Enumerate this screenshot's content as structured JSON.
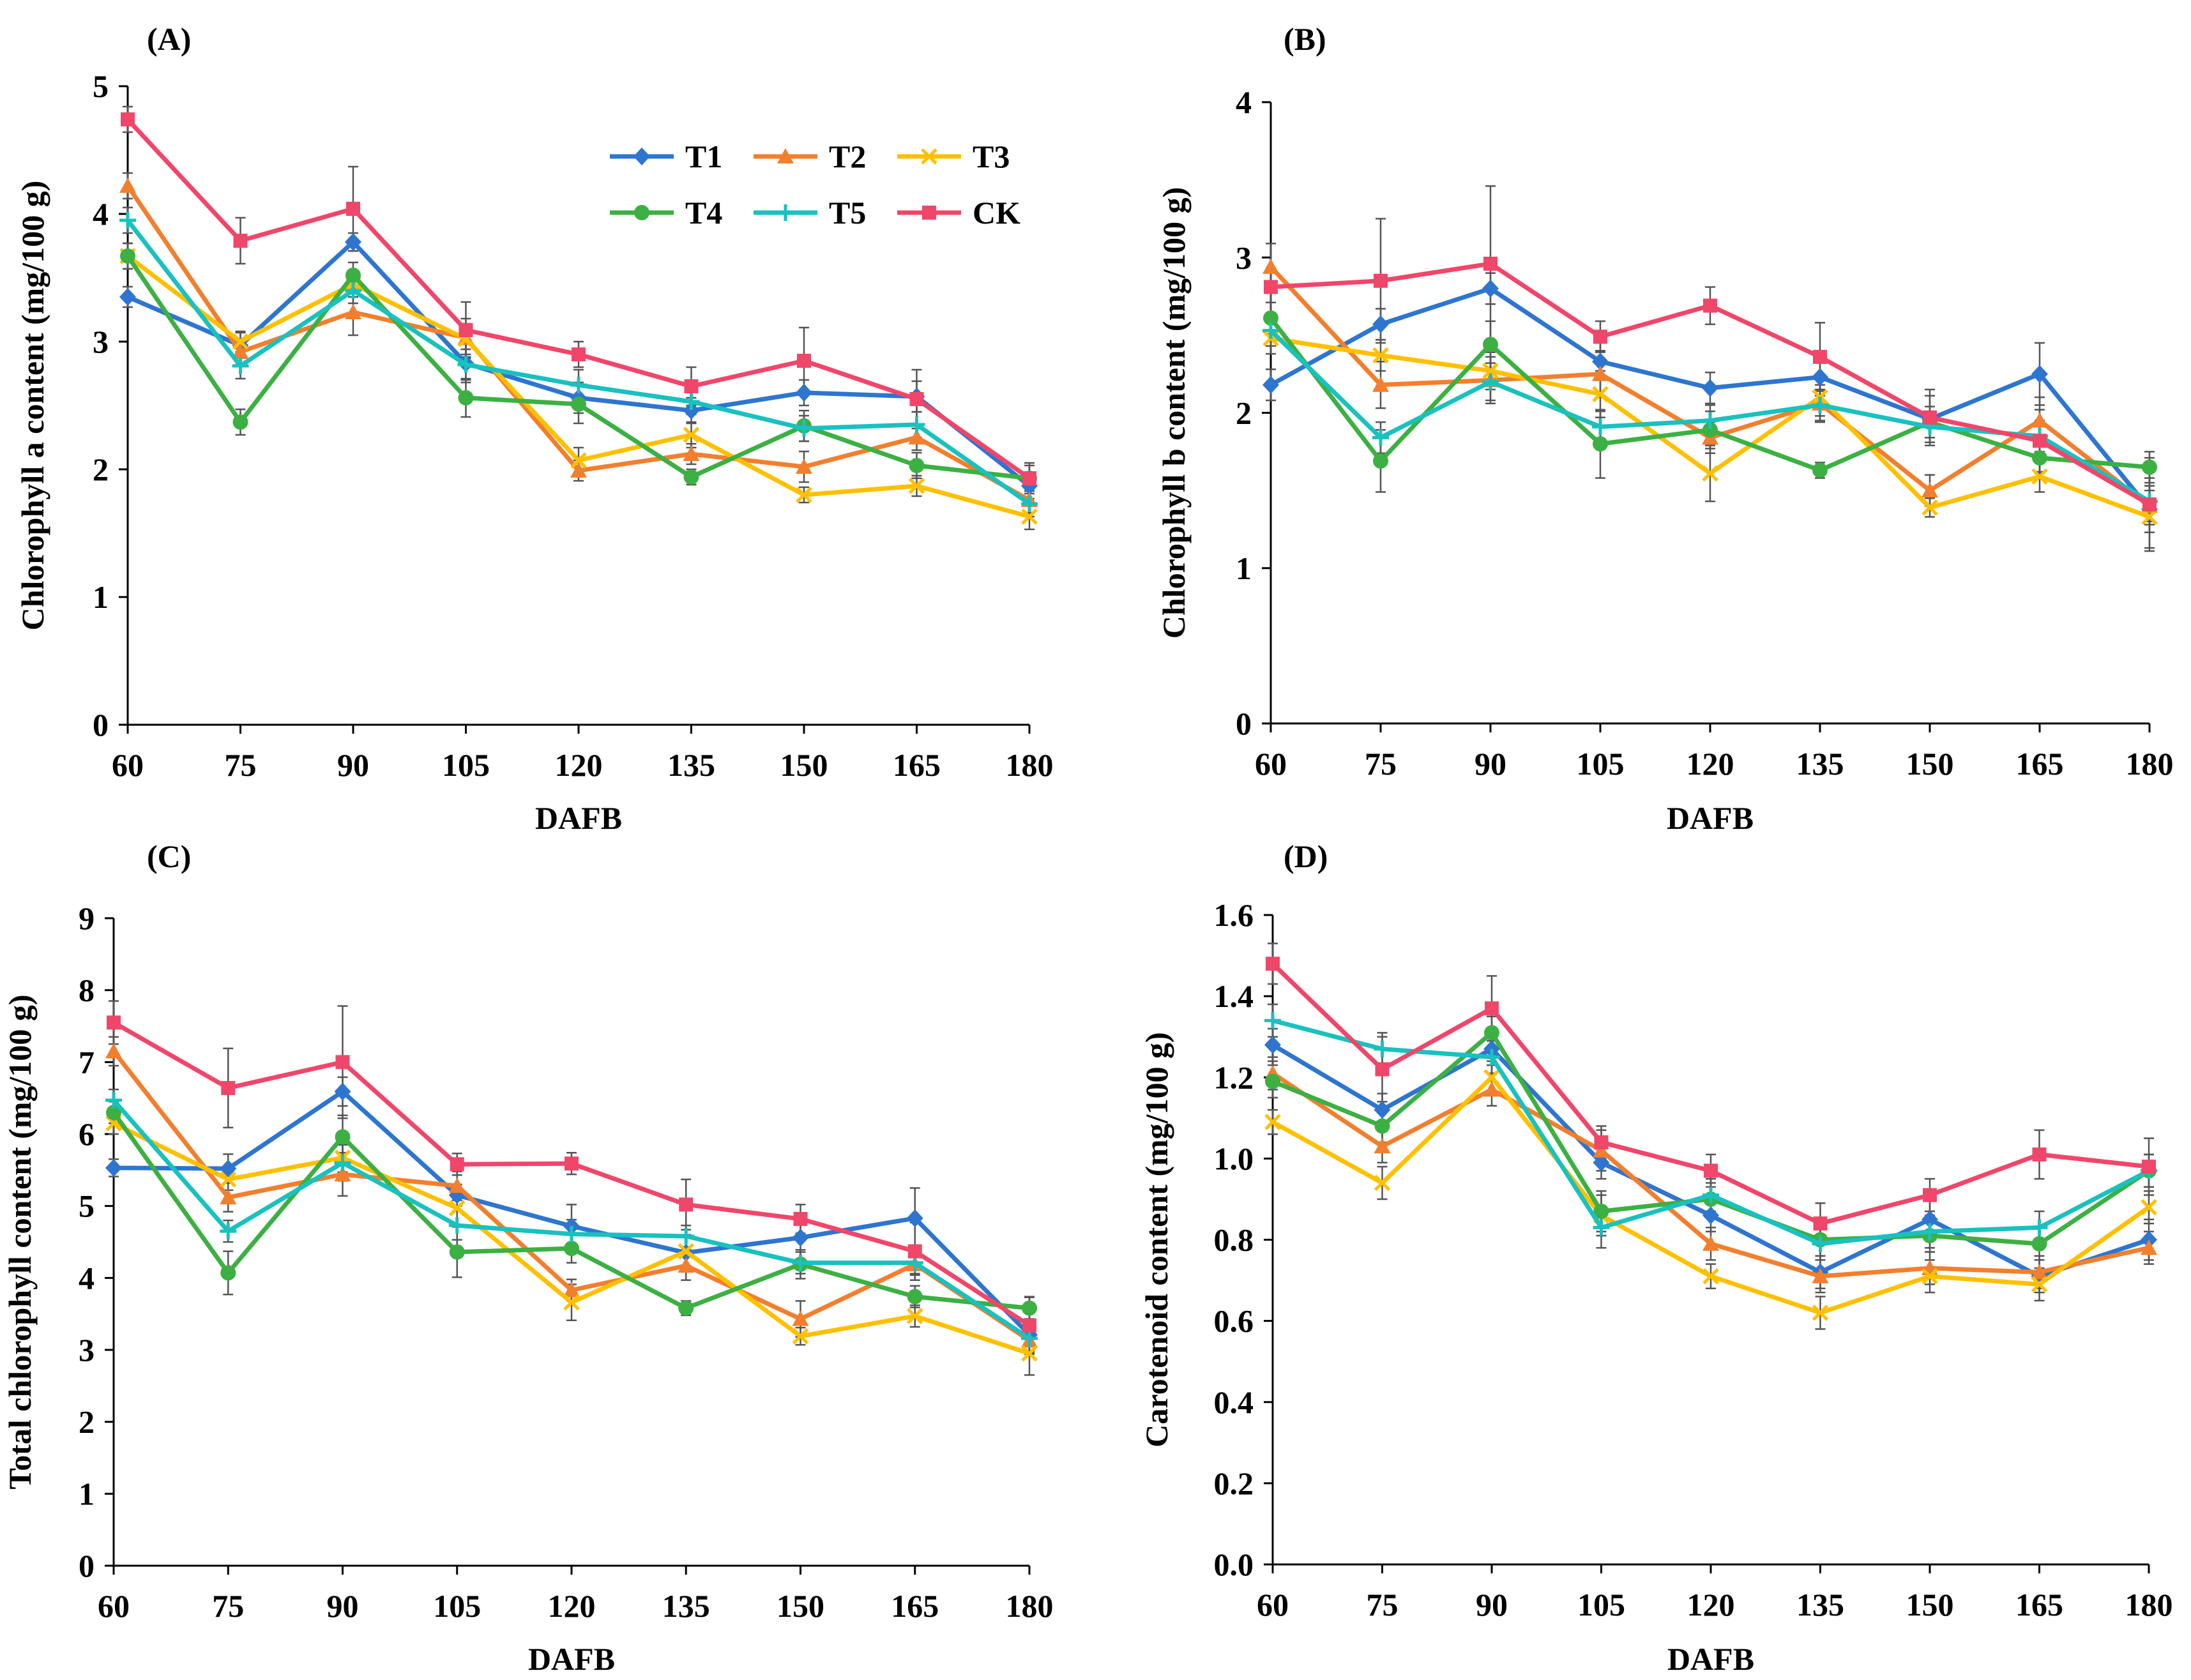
{
  "x_categories": [
    "60",
    "75",
    "90",
    "105",
    "120",
    "135",
    "150",
    "165",
    "180"
  ],
  "series_styles": [
    {
      "name": "T1",
      "color": "#2E75D0",
      "marker": "diamond"
    },
    {
      "name": "T2",
      "color": "#F27F2E",
      "marker": "triangle"
    },
    {
      "name": "T3",
      "color": "#FFC000",
      "marker": "x"
    },
    {
      "name": "T4",
      "color": "#3CB043",
      "marker": "circle"
    },
    {
      "name": "T5",
      "color": "#19C1BF",
      "marker": "plus"
    },
    {
      "name": "CK",
      "color": "#F0466A",
      "marker": "square"
    }
  ],
  "chart_data": [
    {
      "panel": "(A)",
      "type": "line",
      "xlabel": "DAFB",
      "ylabel": "Chlorophyll a content (mg/100 g)",
      "ylim": [
        0,
        5
      ],
      "yticks": [
        "0",
        "1",
        "2",
        "3",
        "4",
        "5"
      ],
      "categories": [
        "60",
        "75",
        "90",
        "105",
        "120",
        "135",
        "150",
        "165",
        "180"
      ],
      "legend": "top-right",
      "series": [
        {
          "name": "T1",
          "values": [
            3.35,
            2.97,
            3.78,
            2.83,
            2.56,
            2.46,
            2.6,
            2.57,
            1.87
          ],
          "errors": [
            0.08,
            0.1,
            0.07,
            0.15,
            0.12,
            0.1,
            0.1,
            0.12,
            0.1
          ]
        },
        {
          "name": "T2",
          "values": [
            4.22,
            2.92,
            3.23,
            3.03,
            1.99,
            2.12,
            2.02,
            2.25,
            1.76
          ],
          "errors": [
            0.1,
            0.1,
            0.18,
            0.15,
            0.08,
            0.08,
            0.12,
            0.1,
            0.1
          ]
        },
        {
          "name": "T3",
          "values": [
            3.67,
            3.0,
            3.45,
            3.02,
            2.07,
            2.27,
            1.8,
            1.87,
            1.63
          ],
          "errors": [
            0.1,
            0.08,
            0.1,
            0.12,
            0.1,
            0.1,
            0.06,
            0.08,
            0.1
          ]
        },
        {
          "name": "T4",
          "values": [
            3.67,
            2.37,
            3.52,
            2.56,
            2.51,
            1.94,
            2.34,
            2.03,
            1.93
          ],
          "errors": [
            0.1,
            0.1,
            0.1,
            0.15,
            0.15,
            0.06,
            0.12,
            0.1,
            0.1
          ]
        },
        {
          "name": "T5",
          "values": [
            3.95,
            2.81,
            3.4,
            2.82,
            2.66,
            2.53,
            2.32,
            2.35,
            1.73
          ],
          "errors": [
            0.1,
            0.1,
            0.1,
            0.12,
            0.12,
            0.1,
            0.1,
            0.1,
            0.1
          ]
        },
        {
          "name": "CK",
          "values": [
            4.74,
            3.79,
            4.04,
            3.09,
            2.9,
            2.65,
            2.85,
            2.55,
            1.93
          ],
          "errors": [
            0.1,
            0.18,
            0.33,
            0.22,
            0.1,
            0.15,
            0.26,
            0.23,
            0.12
          ]
        }
      ]
    },
    {
      "panel": "(B)",
      "type": "line",
      "xlabel": "DAFB",
      "ylabel": "Chlorophyll b content (mg/100 g)",
      "ylim": [
        0,
        4
      ],
      "yticks": [
        "0",
        "1",
        "2",
        "3",
        "4"
      ],
      "categories": [
        "60",
        "75",
        "90",
        "105",
        "120",
        "135",
        "150",
        "165",
        "180"
      ],
      "series": [
        {
          "name": "T1",
          "values": [
            2.18,
            2.57,
            2.8,
            2.33,
            2.16,
            2.23,
            1.96,
            2.25,
            1.38
          ],
          "errors": [
            0.1,
            0.1,
            0.1,
            0.12,
            0.1,
            0.12,
            0.15,
            0.2,
            0.15
          ]
        },
        {
          "name": "T2",
          "values": [
            2.94,
            2.18,
            2.21,
            2.25,
            1.84,
            2.06,
            1.5,
            1.95,
            1.4
          ],
          "errors": [
            0.15,
            0.15,
            0.15,
            0.15,
            0.1,
            0.12,
            0.1,
            0.15,
            0.1
          ]
        },
        {
          "name": "T3",
          "values": [
            2.48,
            2.37,
            2.27,
            2.12,
            1.61,
            2.1,
            1.39,
            1.59,
            1.33
          ],
          "errors": [
            0.1,
            0.1,
            0.12,
            0.15,
            0.18,
            0.12,
            0.06,
            0.1,
            0.2
          ]
        },
        {
          "name": "T4",
          "values": [
            2.61,
            1.69,
            2.44,
            1.8,
            1.89,
            1.63,
            1.94,
            1.71,
            1.65
          ],
          "errors": [
            0.1,
            0.2,
            0.15,
            0.22,
            0.12,
            0.05,
            0.1,
            0.1,
            0.1
          ]
        },
        {
          "name": "T5",
          "values": [
            2.53,
            1.84,
            2.2,
            1.91,
            1.95,
            2.05,
            1.91,
            1.85,
            1.43
          ],
          "errors": [
            0.1,
            0.1,
            0.12,
            0.1,
            0.1,
            0.1,
            0.1,
            0.1,
            0.15
          ]
        },
        {
          "name": "CK",
          "values": [
            2.81,
            2.85,
            2.96,
            2.49,
            2.69,
            2.36,
            1.97,
            1.82,
            1.41
          ],
          "errors": [
            0.1,
            0.4,
            0.5,
            0.1,
            0.12,
            0.22,
            0.18,
            0.2,
            0.3
          ]
        }
      ]
    },
    {
      "panel": "(C)",
      "type": "line",
      "xlabel": "DAFB",
      "ylabel": "Total chlorophyll content (mg/100 g)",
      "ylim": [
        0,
        9
      ],
      "yticks": [
        "0",
        "1",
        "2",
        "3",
        "4",
        "5",
        "6",
        "7",
        "8",
        "9"
      ],
      "categories": [
        "60",
        "75",
        "90",
        "105",
        "120",
        "135",
        "150",
        "165",
        "180"
      ],
      "series": [
        {
          "name": "T1",
          "values": [
            5.53,
            5.52,
            6.59,
            5.15,
            4.72,
            4.35,
            4.56,
            4.83,
            3.21
          ],
          "errors": [
            0.12,
            0.2,
            0.2,
            0.15,
            0.3,
            0.25,
            0.2,
            0.42,
            0.15
          ]
        },
        {
          "name": "T2",
          "values": [
            7.15,
            5.12,
            5.44,
            5.28,
            3.83,
            4.17,
            3.43,
            4.19,
            3.13
          ],
          "errors": [
            0.2,
            0.2,
            0.3,
            0.2,
            0.15,
            0.2,
            0.25,
            0.15,
            0.15
          ]
        },
        {
          "name": "T3",
          "values": [
            6.15,
            5.37,
            5.67,
            4.97,
            3.66,
            4.37,
            3.19,
            3.47,
            2.95
          ],
          "errors": [
            0.15,
            0.15,
            0.2,
            0.25,
            0.25,
            0.2,
            0.12,
            0.15,
            0.3
          ]
        },
        {
          "name": "T4",
          "values": [
            6.3,
            4.07,
            5.96,
            4.36,
            4.41,
            3.58,
            4.19,
            3.74,
            3.58
          ],
          "errors": [
            0.15,
            0.3,
            0.3,
            0.35,
            0.2,
            0.1,
            0.2,
            0.15,
            0.15
          ]
        },
        {
          "name": "T5",
          "values": [
            6.47,
            4.65,
            5.6,
            4.73,
            4.61,
            4.58,
            4.21,
            4.21,
            3.16
          ],
          "errors": [
            0.15,
            0.15,
            0.25,
            0.2,
            0.2,
            0.15,
            0.15,
            0.15,
            0.2
          ]
        },
        {
          "name": "CK",
          "values": [
            7.55,
            6.64,
            7.0,
            5.58,
            5.59,
            5.02,
            4.82,
            4.37,
            3.34
          ],
          "errors": [
            0.3,
            0.55,
            0.78,
            0.15,
            0.15,
            0.35,
            0.2,
            0.4,
            0.4
          ]
        }
      ]
    },
    {
      "panel": "(D)",
      "type": "line",
      "xlabel": "DAFB",
      "ylabel": "Carotenoid content (mg/100 g)",
      "ylim": [
        0,
        1.6
      ],
      "yticks": [
        "0.0",
        "0.2",
        "0.4",
        "0.6",
        "0.8",
        "1.0",
        "1.2",
        "1.4",
        "1.6"
      ],
      "categories": [
        "60",
        "75",
        "90",
        "105",
        "120",
        "135",
        "150",
        "165",
        "180"
      ],
      "series": [
        {
          "name": "T1",
          "values": [
            1.28,
            1.12,
            1.27,
            0.99,
            0.86,
            0.72,
            0.85,
            0.71,
            0.8
          ],
          "errors": [
            0.04,
            0.04,
            0.04,
            0.04,
            0.04,
            0.04,
            0.05,
            0.04,
            0.05
          ]
        },
        {
          "name": "T2",
          "values": [
            1.21,
            1.03,
            1.17,
            1.02,
            0.79,
            0.71,
            0.73,
            0.72,
            0.78
          ],
          "errors": [
            0.04,
            0.04,
            0.04,
            0.05,
            0.04,
            0.04,
            0.04,
            0.04,
            0.04
          ]
        },
        {
          "name": "T3",
          "values": [
            1.09,
            0.94,
            1.2,
            0.86,
            0.71,
            0.62,
            0.71,
            0.69,
            0.88
          ],
          "errors": [
            0.03,
            0.04,
            0.04,
            0.05,
            0.03,
            0.04,
            0.04,
            0.04,
            0.04
          ]
        },
        {
          "name": "T4",
          "values": [
            1.19,
            1.08,
            1.31,
            0.87,
            0.9,
            0.8,
            0.81,
            0.79,
            0.97
          ],
          "errors": [
            0.04,
            0.04,
            0.04,
            0.05,
            0.04,
            0.04,
            0.04,
            0.04,
            0.04
          ]
        },
        {
          "name": "T5",
          "values": [
            1.34,
            1.27,
            1.25,
            0.83,
            0.91,
            0.79,
            0.82,
            0.83,
            0.97
          ],
          "errors": [
            0.04,
            0.04,
            0.04,
            0.05,
            0.04,
            0.04,
            0.04,
            0.04,
            0.04
          ]
        },
        {
          "name": "CK",
          "values": [
            1.48,
            1.22,
            1.37,
            1.04,
            0.97,
            0.84,
            0.91,
            1.01,
            0.98
          ],
          "errors": [
            0.05,
            0.08,
            0.08,
            0.04,
            0.04,
            0.05,
            0.04,
            0.06,
            0.07
          ]
        }
      ]
    }
  ]
}
